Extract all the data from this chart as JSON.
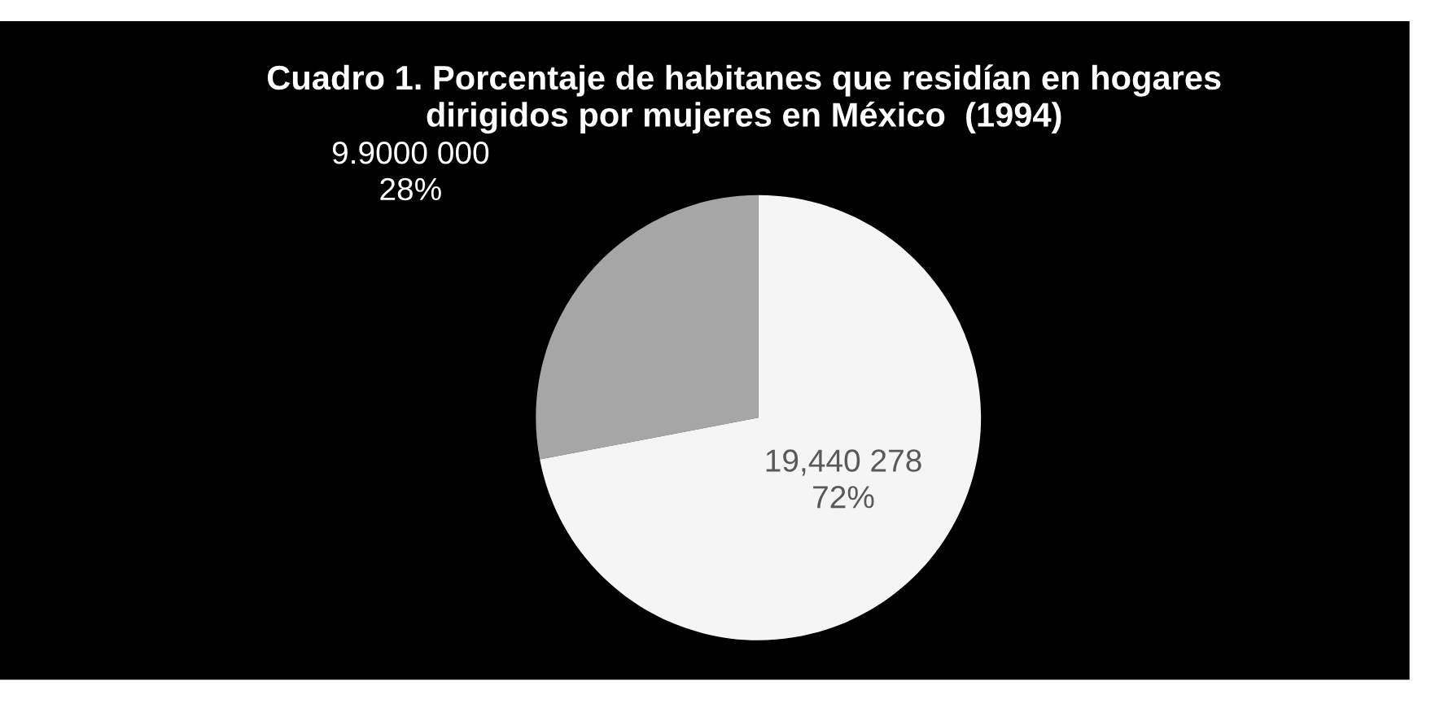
{
  "chart_data": {
    "type": "pie",
    "title": "Cuadro 1. Porcentaje de habitanes que residían en hogares\ndirigidos por mujeres en México  (1994)",
    "categories": [
      null,
      null
    ],
    "values": [
      28,
      72
    ],
    "value_labels": [
      "9.9000 000\n28%",
      "19,440 278\n72%"
    ],
    "colors": [
      "#a6a6a6",
      "#f5f5f5"
    ]
  }
}
